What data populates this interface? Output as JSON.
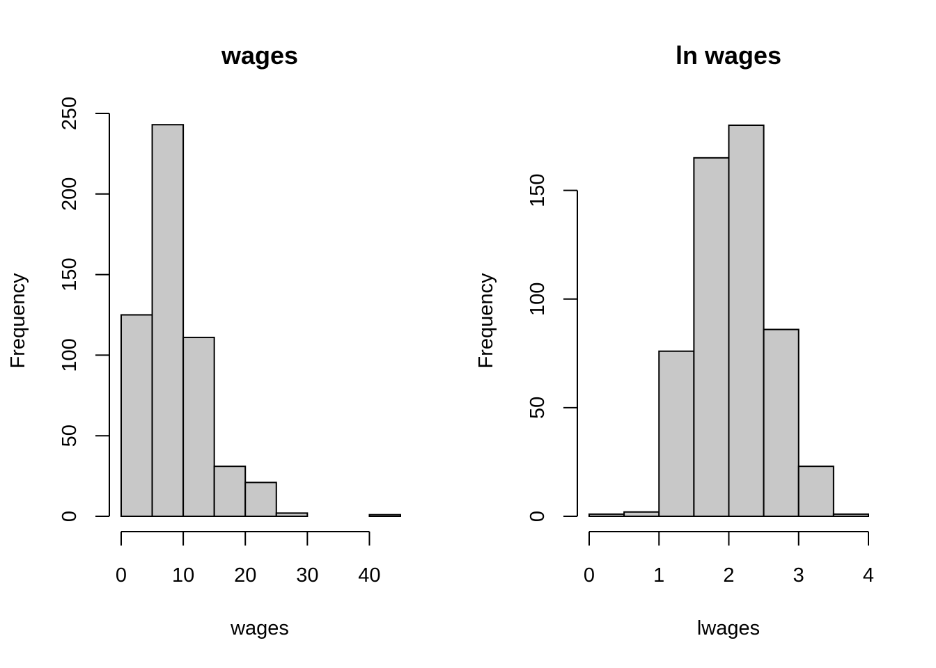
{
  "chart_data": [
    {
      "type": "bar",
      "title": "wages",
      "xlabel": "wages",
      "ylabel": "Frequency",
      "bin_edges": [
        0,
        5,
        10,
        15,
        20,
        25,
        30,
        35,
        40,
        45
      ],
      "values": [
        125,
        243,
        111,
        31,
        21,
        2,
        0,
        0,
        1
      ],
      "xlim": [
        0,
        45
      ],
      "ylim": [
        0,
        250
      ],
      "xticks": [
        0,
        10,
        20,
        30,
        40
      ],
      "yticks": [
        0,
        50,
        100,
        150,
        200,
        250
      ],
      "grid": false,
      "legend": "none"
    },
    {
      "type": "bar",
      "title": "ln wages",
      "xlabel": "lwages",
      "ylabel": "Frequency",
      "bin_edges": [
        0,
        0.5,
        1,
        1.5,
        2,
        2.5,
        3,
        3.5,
        4
      ],
      "values": [
        1,
        2,
        76,
        165,
        180,
        86,
        23,
        1
      ],
      "xlim": [
        0,
        4
      ],
      "ylim": [
        0,
        180
      ],
      "xticks": [
        0,
        1,
        2,
        3,
        4
      ],
      "yticks": [
        0,
        50,
        100,
        150
      ],
      "grid": false,
      "legend": "none"
    }
  ]
}
